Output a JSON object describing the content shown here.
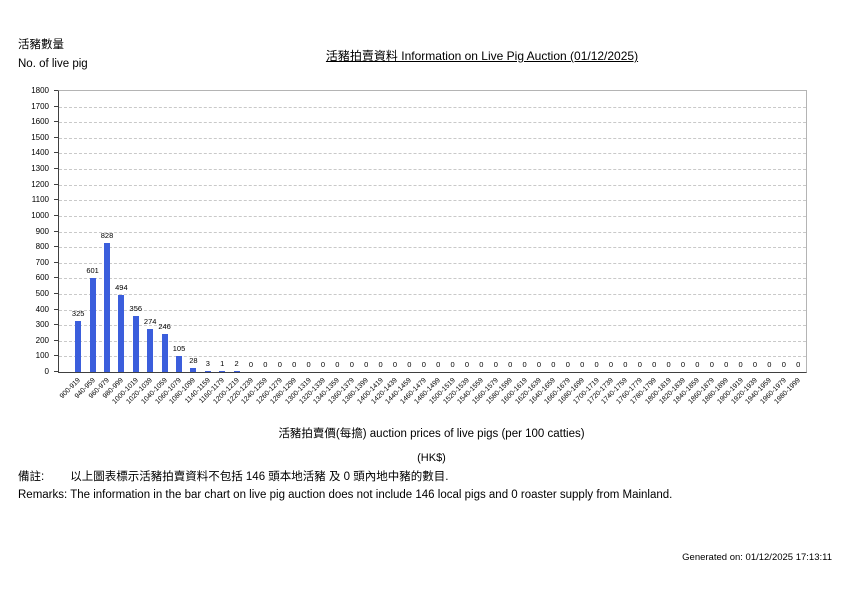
{
  "header": {
    "y_axis_title_zh": "活豬數量",
    "y_axis_title_en": "No. of live pig",
    "title": "活豬拍賣資料 Information on Live Pig Auction (01/12/2025)"
  },
  "chart_data": {
    "type": "bar",
    "title": "活豬拍賣資料 Information on Live Pig Auction (01/12/2025)",
    "categories": [
      "900-919",
      "940-959",
      "960-979",
      "980-999",
      "1000-1019",
      "1020-1039",
      "1040-1059",
      "1060-1079",
      "1080-1099",
      "1140-1159",
      "1160-1179",
      "1200-1219",
      "1220-1239",
      "1240-1259",
      "1260-1279",
      "1280-1299",
      "1300-1319",
      "1320-1339",
      "1340-1359",
      "1360-1379",
      "1380-1399",
      "1400-1419",
      "1420-1439",
      "1440-1459",
      "1460-1479",
      "1480-1499",
      "1500-1519",
      "1520-1539",
      "1540-1559",
      "1560-1579",
      "1580-1599",
      "1600-1619",
      "1620-1639",
      "1640-1659",
      "1660-1679",
      "1680-1699",
      "1700-1719",
      "1720-1739",
      "1740-1759",
      "1760-1779",
      "1780-1799",
      "1800-1819",
      "1820-1839",
      "1840-1859",
      "1860-1879",
      "1880-1899",
      "1900-1919",
      "1920-1939",
      "1940-1959",
      "1960-1979",
      "1980-1999"
    ],
    "values": [
      325,
      601,
      828,
      494,
      356,
      274,
      246,
      105,
      28,
      3,
      1,
      2,
      0,
      0,
      0,
      0,
      0,
      0,
      0,
      0,
      0,
      0,
      0,
      0,
      0,
      0,
      0,
      0,
      0,
      0,
      0,
      0,
      0,
      0,
      0,
      0,
      0,
      0,
      0,
      0,
      0,
      0,
      0,
      0,
      0,
      0,
      0,
      0,
      0,
      0,
      0
    ],
    "xlabel": "活豬拍賣價(每擔) auction prices of live pigs (per 100 catties)",
    "x_unit": "(HK$)",
    "ylabel_zh": "活豬數量",
    "ylabel_en": "No. of live pig",
    "ylim": [
      0,
      1800
    ],
    "ytick_step": 100,
    "grid": "horizontal-dashed",
    "legend": "none",
    "value_labels": true,
    "bar_color": "#3b5edc"
  },
  "colors": {
    "bar": "#3b5edc",
    "gridline": "#c9c9c9",
    "axis": "#404040",
    "plot_border": "#b4b4b4"
  },
  "remarks": {
    "zh_label": "備註:",
    "zh_text": "以上圖表標示活豬拍賣資料不包括 146 頭本地活豬 及 0 頭內地中豬的數目.",
    "en_text": "Remarks: The information in the bar chart on live pig auction does not include 146 local pigs and 0 roaster supply from Mainland."
  },
  "footer": {
    "generated": "Generated on: 01/12/2025 17:13:11"
  }
}
